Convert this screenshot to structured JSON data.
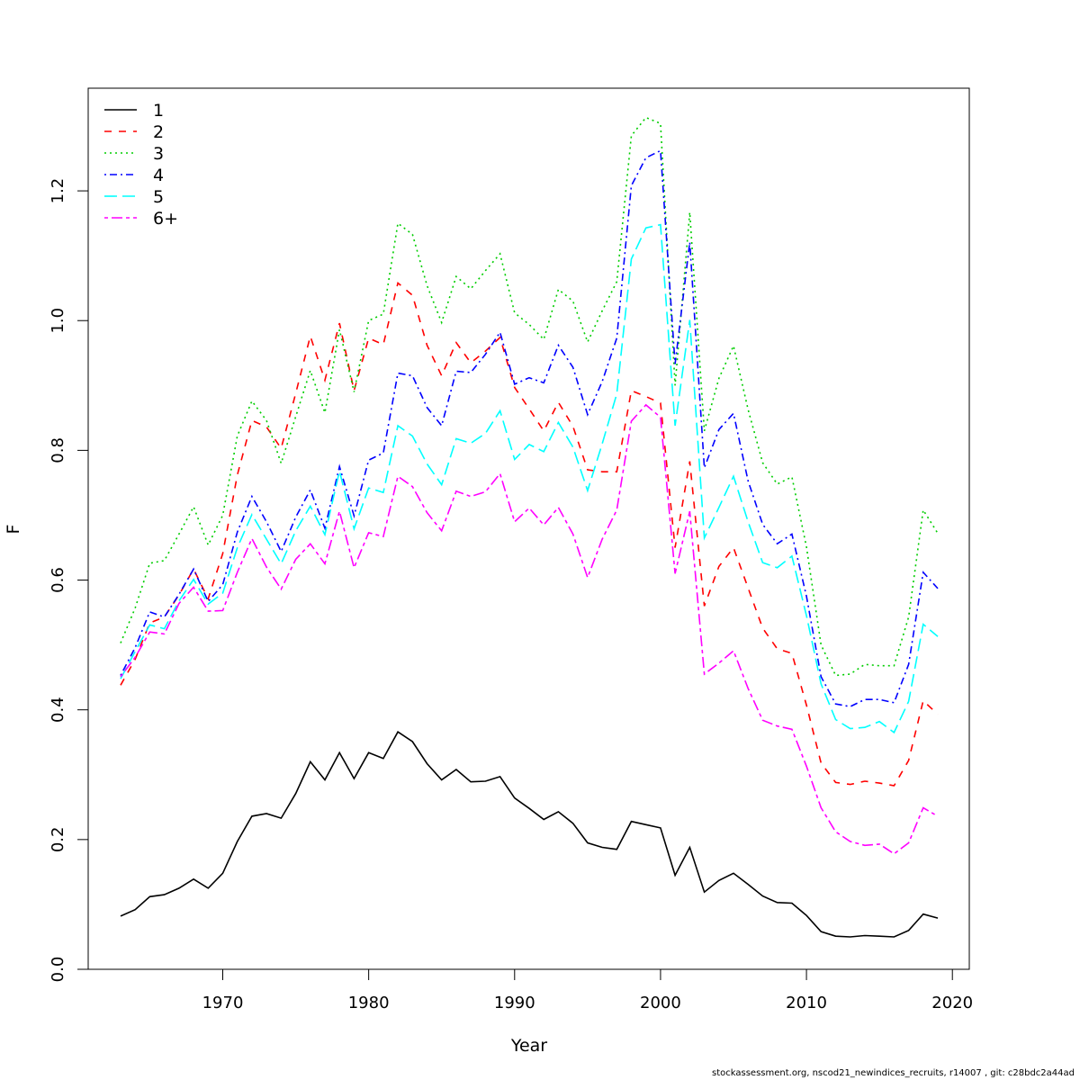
{
  "chart_data": {
    "type": "line",
    "xlabel": "Year",
    "ylabel": "F",
    "xlim": [
      1963,
      2019
    ],
    "ylim": [
      0,
      1.3
    ],
    "x_ticks": [
      1970,
      1980,
      1990,
      2000,
      2010,
      2020
    ],
    "y_ticks": [
      0.0,
      0.2,
      0.4,
      0.6,
      0.8,
      1.0,
      1.2
    ],
    "y_tick_labels": [
      "0.0",
      "0.2",
      "0.4",
      "0.6",
      "0.8",
      "1.0",
      "1.2"
    ],
    "grid": false,
    "legend_position": "top-left",
    "x": [
      1963,
      1964,
      1965,
      1966,
      1967,
      1968,
      1969,
      1970,
      1971,
      1972,
      1973,
      1974,
      1975,
      1976,
      1977,
      1978,
      1979,
      1980,
      1981,
      1982,
      1983,
      1984,
      1985,
      1986,
      1987,
      1988,
      1989,
      1990,
      1991,
      1992,
      1993,
      1994,
      1995,
      1996,
      1997,
      1998,
      1999,
      2000,
      2001,
      2002,
      2003,
      2004,
      2005,
      2006,
      2007,
      2008,
      2009,
      2010,
      2011,
      2012,
      2013,
      2014,
      2015,
      2016,
      2017,
      2018,
      2019
    ],
    "series": [
      {
        "name": "1",
        "color": "#000000",
        "dash": "solid",
        "values": [
          0.082,
          0.092,
          0.112,
          0.115,
          0.125,
          0.139,
          0.125,
          0.148,
          0.197,
          0.236,
          0.24,
          0.233,
          0.271,
          0.32,
          0.292,
          0.334,
          0.294,
          0.334,
          0.325,
          0.366,
          0.351,
          0.317,
          0.292,
          0.308,
          0.289,
          0.29,
          0.297,
          0.264,
          0.248,
          0.231,
          0.243,
          0.225,
          0.195,
          0.188,
          0.185,
          0.228,
          0.223,
          0.218,
          0.145,
          0.188,
          0.119,
          0.137,
          0.148,
          0.131,
          0.113,
          0.103,
          0.102,
          0.083,
          0.058,
          0.051,
          0.05,
          0.052,
          0.051,
          0.05,
          0.06,
          0.085,
          0.079
        ]
      },
      {
        "name": "2",
        "color": "#ff0000",
        "dash": "dashed",
        "values": [
          0.438,
          0.478,
          0.534,
          0.543,
          0.577,
          0.617,
          0.571,
          0.641,
          0.762,
          0.846,
          0.836,
          0.803,
          0.888,
          0.976,
          0.908,
          0.996,
          0.892,
          0.973,
          0.963,
          1.058,
          1.039,
          0.962,
          0.915,
          0.966,
          0.935,
          0.953,
          0.974,
          0.897,
          0.864,
          0.83,
          0.874,
          0.837,
          0.77,
          0.767,
          0.767,
          0.892,
          0.883,
          0.873,
          0.65,
          0.783,
          0.56,
          0.621,
          0.65,
          0.588,
          0.526,
          0.494,
          0.487,
          0.407,
          0.318,
          0.288,
          0.285,
          0.29,
          0.287,
          0.283,
          0.322,
          0.414,
          0.393
        ]
      },
      {
        "name": "3",
        "color": "#00cd00",
        "dash": "dotted",
        "values": [
          0.503,
          0.557,
          0.626,
          0.63,
          0.671,
          0.713,
          0.654,
          0.7,
          0.822,
          0.876,
          0.846,
          0.78,
          0.852,
          0.923,
          0.858,
          0.986,
          0.89,
          1.0,
          1.01,
          1.15,
          1.133,
          1.054,
          0.997,
          1.068,
          1.049,
          1.077,
          1.103,
          1.012,
          0.994,
          0.971,
          1.048,
          1.03,
          0.967,
          1.015,
          1.06,
          1.285,
          1.313,
          1.304,
          0.9,
          1.167,
          0.83,
          0.911,
          0.961,
          0.863,
          0.781,
          0.748,
          0.759,
          0.651,
          0.5,
          0.453,
          0.455,
          0.47,
          0.468,
          0.468,
          0.543,
          0.708,
          0.672
        ]
      },
      {
        "name": "4",
        "color": "#0000ff",
        "dash": "dotdash",
        "values": [
          0.453,
          0.496,
          0.551,
          0.543,
          0.578,
          0.617,
          0.567,
          0.593,
          0.674,
          0.729,
          0.69,
          0.644,
          0.697,
          0.739,
          0.68,
          0.775,
          0.699,
          0.785,
          0.796,
          0.919,
          0.915,
          0.866,
          0.838,
          0.922,
          0.92,
          0.948,
          0.982,
          0.902,
          0.912,
          0.904,
          0.962,
          0.928,
          0.855,
          0.906,
          0.973,
          1.208,
          1.251,
          1.262,
          0.933,
          1.121,
          0.773,
          0.832,
          0.857,
          0.753,
          0.686,
          0.656,
          0.671,
          0.575,
          0.451,
          0.409,
          0.405,
          0.416,
          0.416,
          0.411,
          0.47,
          0.612,
          0.587
        ]
      },
      {
        "name": "5",
        "color": "#00ffff",
        "dash": "longdash",
        "values": [
          0.448,
          0.49,
          0.531,
          0.525,
          0.568,
          0.601,
          0.563,
          0.58,
          0.65,
          0.701,
          0.663,
          0.625,
          0.676,
          0.714,
          0.67,
          0.768,
          0.679,
          0.742,
          0.735,
          0.838,
          0.822,
          0.779,
          0.747,
          0.818,
          0.811,
          0.826,
          0.861,
          0.786,
          0.809,
          0.798,
          0.843,
          0.805,
          0.738,
          0.81,
          0.887,
          1.095,
          1.143,
          1.148,
          0.838,
          1.001,
          0.665,
          0.712,
          0.76,
          0.69,
          0.627,
          0.619,
          0.637,
          0.545,
          0.44,
          0.385,
          0.371,
          0.373,
          0.382,
          0.365,
          0.413,
          0.532,
          0.513
        ]
      },
      {
        "name": "6+",
        "color": "#ff00ff",
        "dash": "twodash",
        "values": [
          0.451,
          0.481,
          0.52,
          0.517,
          0.564,
          0.589,
          0.552,
          0.553,
          0.612,
          0.664,
          0.62,
          0.586,
          0.632,
          0.656,
          0.625,
          0.706,
          0.619,
          0.673,
          0.667,
          0.76,
          0.744,
          0.704,
          0.676,
          0.737,
          0.729,
          0.736,
          0.764,
          0.69,
          0.711,
          0.685,
          0.712,
          0.671,
          0.604,
          0.663,
          0.708,
          0.845,
          0.87,
          0.851,
          0.61,
          0.706,
          0.455,
          0.472,
          0.491,
          0.433,
          0.384,
          0.375,
          0.37,
          0.313,
          0.249,
          0.212,
          0.197,
          0.191,
          0.193,
          0.178,
          0.195,
          0.249,
          0.236
        ]
      }
    ]
  },
  "footer": "stockassessment.org, nscod21_newindices_recruits, r14007 , git: c28bdc2a44ad"
}
